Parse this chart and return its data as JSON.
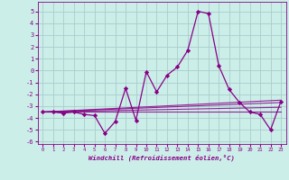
{
  "xlabel": "Windchill (Refroidissement éolien,°C)",
  "background_color": "#cceee8",
  "grid_color": "#aacccc",
  "line_color": "#880088",
  "xlim": [
    -0.5,
    23.5
  ],
  "ylim": [
    -6.2,
    5.8
  ],
  "yticks": [
    -6,
    -5,
    -4,
    -3,
    -2,
    -1,
    0,
    1,
    2,
    3,
    4,
    5
  ],
  "xticks": [
    0,
    1,
    2,
    3,
    4,
    5,
    6,
    7,
    8,
    9,
    10,
    11,
    12,
    13,
    14,
    15,
    16,
    17,
    18,
    19,
    20,
    21,
    22,
    23
  ],
  "series": [
    [
      0,
      -3.5
    ],
    [
      1,
      -3.5
    ],
    [
      2,
      -3.6
    ],
    [
      3,
      -3.5
    ],
    [
      4,
      -3.7
    ],
    [
      5,
      -3.8
    ],
    [
      6,
      -5.3
    ],
    [
      7,
      -4.3
    ],
    [
      8,
      -1.5
    ],
    [
      9,
      -4.2
    ],
    [
      10,
      -0.1
    ],
    [
      11,
      -1.8
    ],
    [
      12,
      -0.4
    ],
    [
      13,
      0.3
    ],
    [
      14,
      1.7
    ],
    [
      15,
      5.0
    ],
    [
      16,
      4.8
    ],
    [
      17,
      0.4
    ],
    [
      18,
      -1.6
    ],
    [
      19,
      -2.7
    ],
    [
      20,
      -3.5
    ],
    [
      21,
      -3.7
    ],
    [
      22,
      -5.0
    ],
    [
      23,
      -2.6
    ]
  ],
  "extra_lines": [
    {
      "x": [
        0,
        23
      ],
      "y": [
        -3.5,
        -3.5
      ]
    },
    {
      "x": [
        0,
        23
      ],
      "y": [
        -3.5,
        -2.5
      ]
    },
    {
      "x": [
        0,
        23
      ],
      "y": [
        -3.5,
        -2.7
      ]
    },
    {
      "x": [
        0,
        23
      ],
      "y": [
        -3.5,
        -3.1
      ]
    }
  ]
}
